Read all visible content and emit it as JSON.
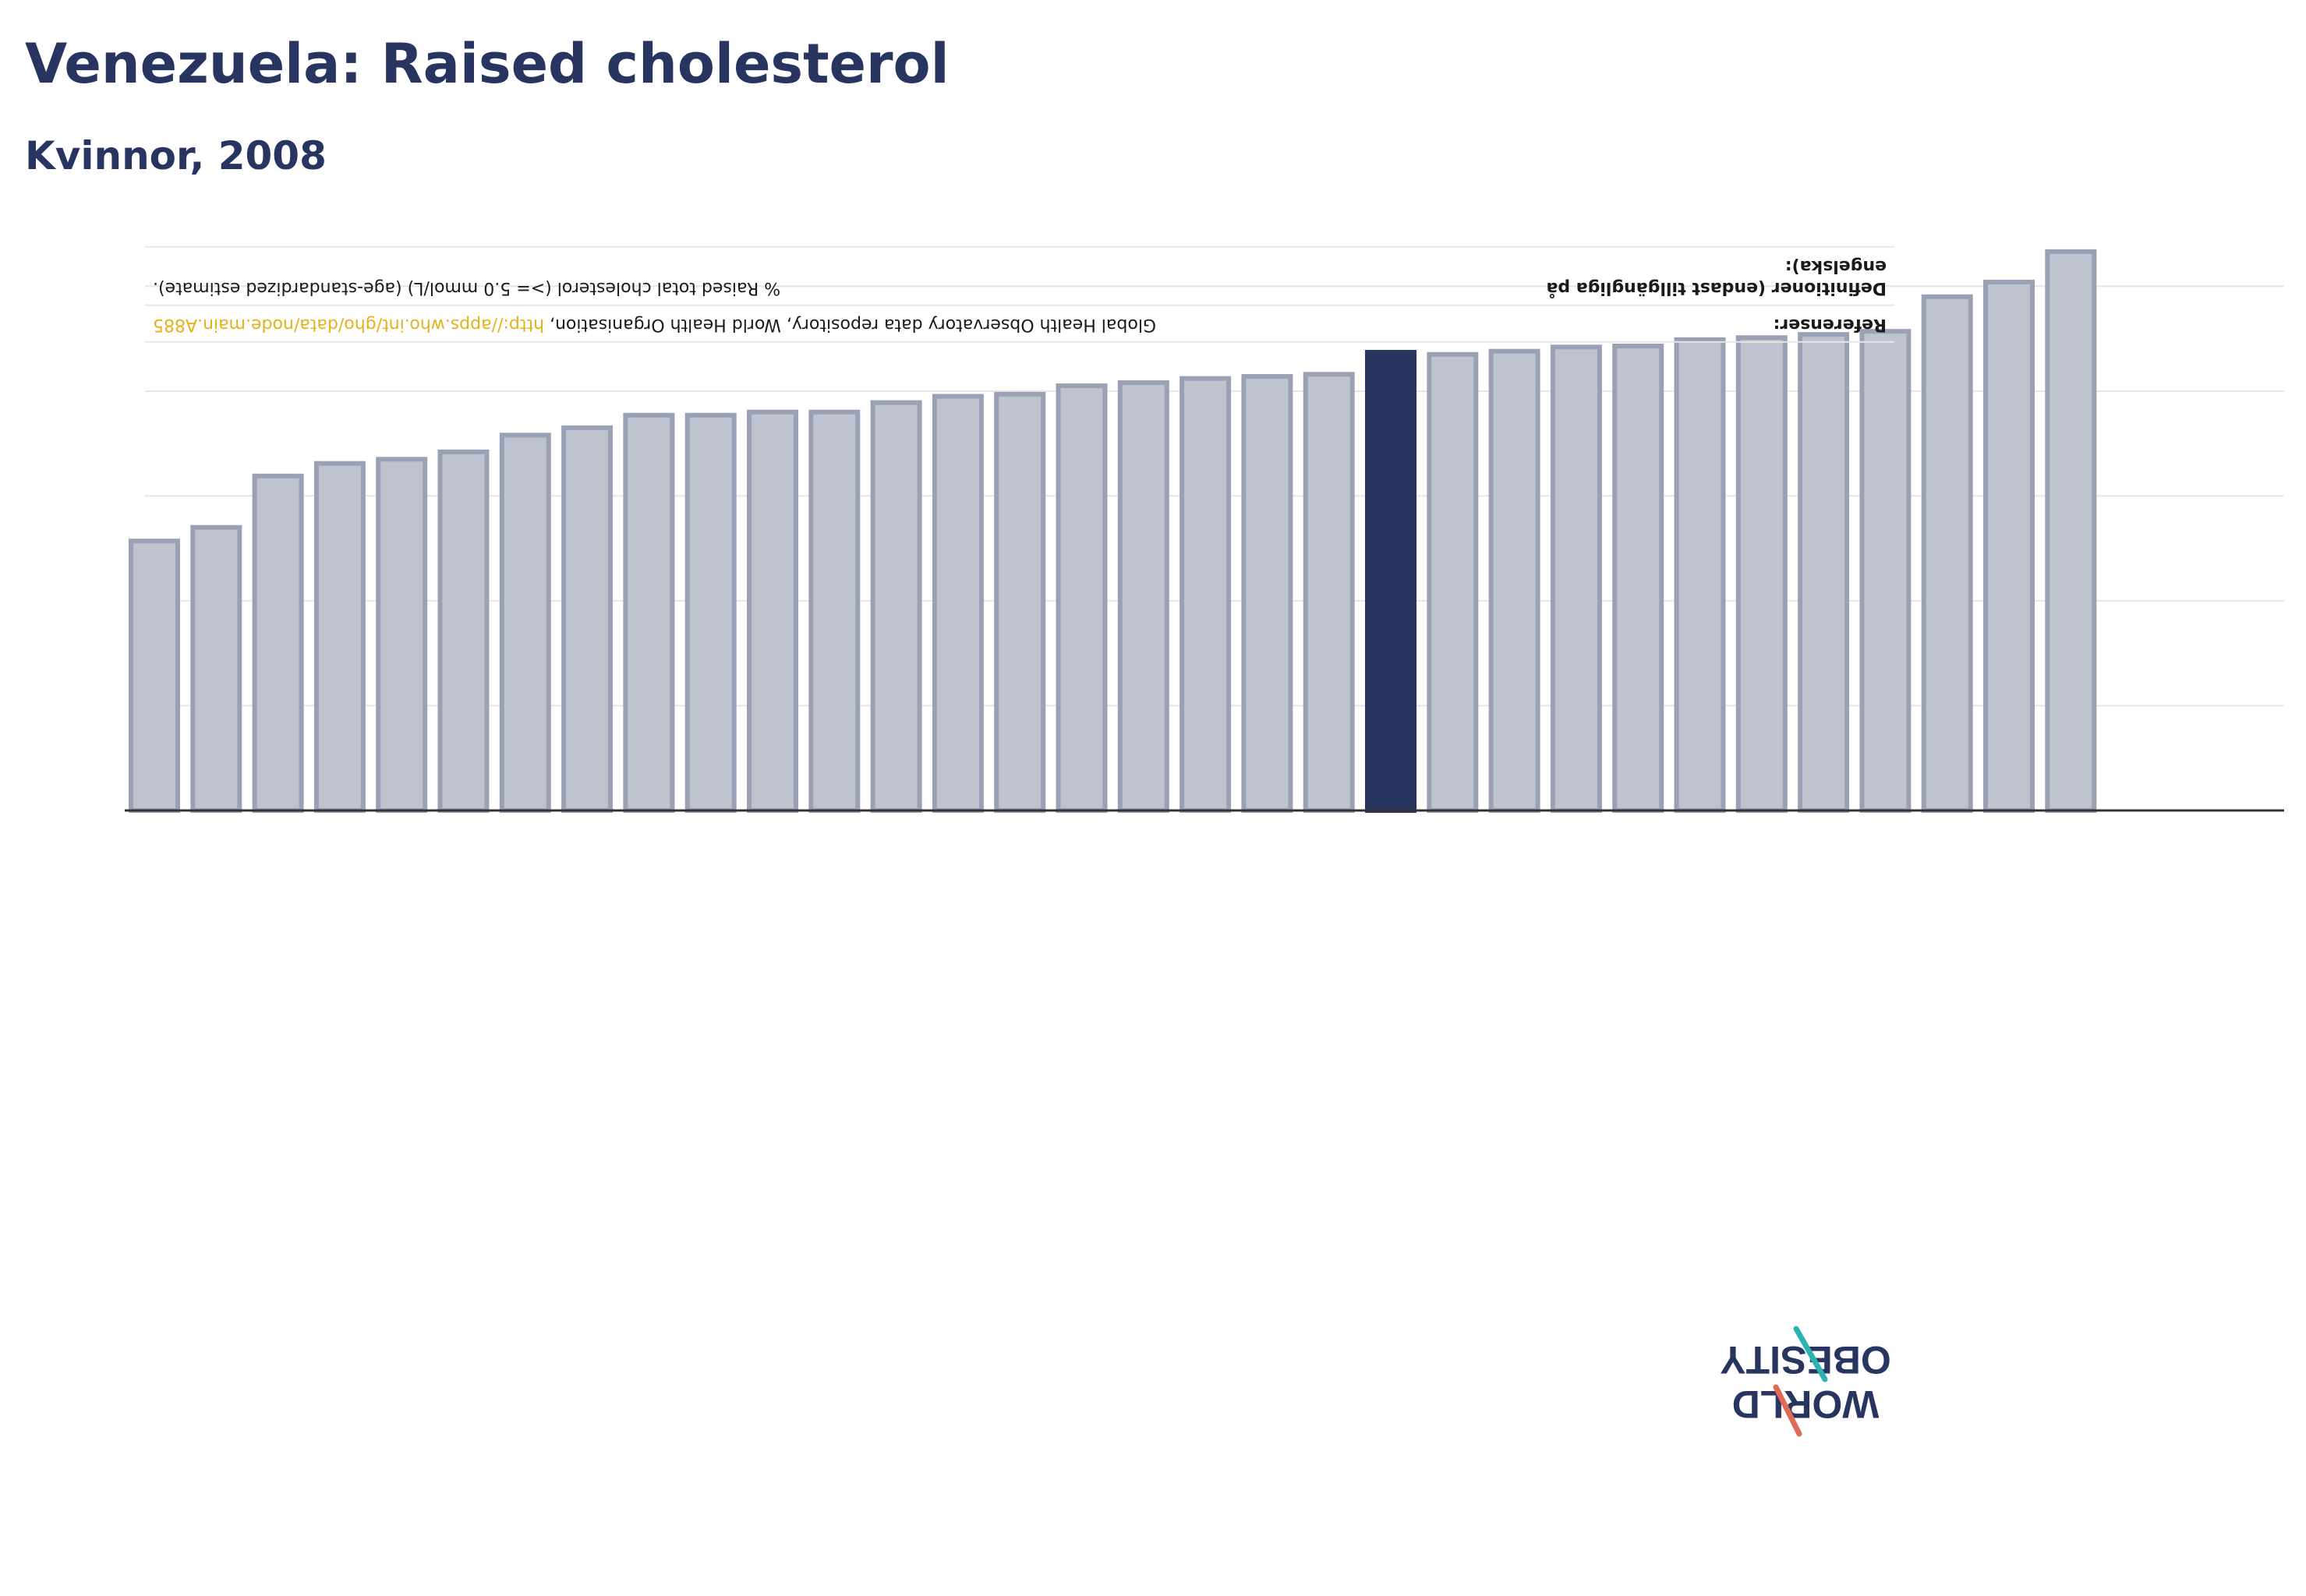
{
  "header": {
    "title": "Venezuela: Raised cholesterol",
    "subtitle": "Kvinnor, 2008"
  },
  "colors": {
    "highlight_bar": "#283561",
    "other_bars": "#bfc3cf",
    "other_bar_outline": "#9aa1b5",
    "axis": "#333333",
    "grid": "#e6e6e6",
    "link": "#e4b21c"
  },
  "chart_data": {
    "type": "bar",
    "title": "Venezuela: Raised cholesterol",
    "subtitle": "Kvinnor, 2008",
    "xlabel": "",
    "ylabel": "",
    "ylim": [
      0,
      55
    ],
    "grid": true,
    "highlight_index": 20,
    "values": [
      25.7,
      27.0,
      31.9,
      33.1,
      33.5,
      34.2,
      35.8,
      36.5,
      37.7,
      37.7,
      38.0,
      38.0,
      38.9,
      39.5,
      39.7,
      40.5,
      40.8,
      41.2,
      41.4,
      41.6,
      43.7,
      43.5,
      43.8,
      44.2,
      44.3,
      44.9,
      45.1,
      45.4,
      45.7,
      49.0,
      50.4,
      53.3
    ]
  },
  "references": {
    "rows": [
      {
        "label": "Referenser:",
        "value": "Global Health Observatory data repository, World Health Organisation,",
        "link": "http://apps.who.int/gho/data/node.main.A885"
      },
      {
        "label": "Definitioner (endast tillgängliga på engelska):",
        "value": "% Raised total cholesterol (>= 5.0 mmol/L) (age-standardized estimate).",
        "link": ""
      }
    ]
  },
  "logo": {
    "line1": "OBESITY",
    "line2": "WORLD"
  }
}
